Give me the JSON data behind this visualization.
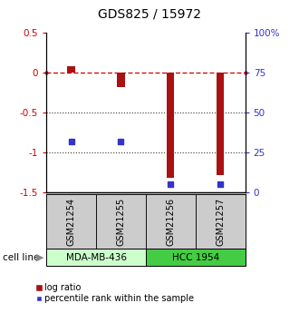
{
  "title": "GDS825 / 15972",
  "samples": [
    "GSM21254",
    "GSM21255",
    "GSM21256",
    "GSM21257"
  ],
  "log_ratios": [
    0.08,
    -0.18,
    -1.32,
    -1.28
  ],
  "percentile_ranks": [
    32,
    32,
    5,
    5
  ],
  "cell_lines": [
    {
      "label": "MDA-MB-436",
      "samples": [
        0,
        1
      ],
      "color": "#ccffcc"
    },
    {
      "label": "HCC 1954",
      "samples": [
        2,
        3
      ],
      "color": "#44cc44"
    }
  ],
  "ylim_left": [
    -1.5,
    0.5
  ],
  "ylim_right": [
    0,
    100
  ],
  "left_ticks": [
    0.5,
    0.0,
    -0.5,
    -1.0,
    -1.5
  ],
  "right_ticks": [
    100,
    75,
    50,
    25,
    0
  ],
  "bar_color": "#aa1111",
  "dot_color": "#3333cc",
  "bar_width": 0.15,
  "legend_red_label": "log ratio",
  "legend_blue_label": "percentile rank within the sample",
  "cell_line_label": "cell line",
  "dashed_line_color": "#cc0000",
  "dotted_line_color": "#333333",
  "sample_box_color": "#cccccc",
  "left_tick_color": "#cc0000",
  "right_tick_color": "#3333cc"
}
